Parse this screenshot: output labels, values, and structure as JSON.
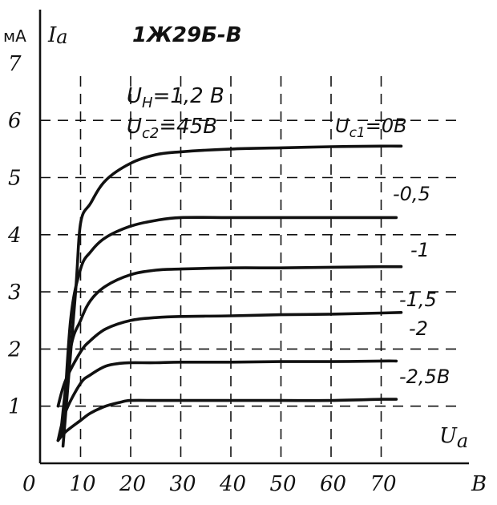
{
  "chart_data": {
    "type": "line",
    "title": "1Ж29Б-В",
    "parameters": [
      "U_H=1,2 B",
      "U_c2=45B"
    ],
    "parameter_lines": [
      {
        "main": "U",
        "sub": "H",
        "rest": "=1,2 B"
      },
      {
        "main": "U",
        "sub": "c2",
        "rest": "=45B"
      }
    ],
    "ylabel": {
      "main": "I",
      "sub": "a",
      "unit": "мА"
    },
    "xlabel": {
      "main": "U",
      "sub": "a",
      "unit": "B"
    },
    "xlim": [
      0,
      75
    ],
    "ylim": [
      0,
      7.5
    ],
    "x_ticks": [
      {
        "value": 0,
        "label": "0"
      },
      {
        "value": 10,
        "label": "10"
      },
      {
        "value": 20,
        "label": "20"
      },
      {
        "value": 30,
        "label": "30"
      },
      {
        "value": 40,
        "label": "40"
      },
      {
        "value": 50,
        "label": "50"
      },
      {
        "value": 60,
        "label": "60"
      },
      {
        "value": 70,
        "label": "70"
      }
    ],
    "y_ticks": [
      {
        "value": 1,
        "label": "1"
      },
      {
        "value": 2,
        "label": "2"
      },
      {
        "value": 3,
        "label": "3"
      },
      {
        "value": 4,
        "label": "4"
      },
      {
        "value": 5,
        "label": "5"
      },
      {
        "value": 6,
        "label": "6"
      },
      {
        "value": 7,
        "label": "7"
      }
    ],
    "grid": true,
    "series": [
      {
        "name": "U_c1=0B",
        "label": "Uc1=0B",
        "x": [
          6.5,
          9,
          10,
          12,
          15,
          20,
          25,
          30,
          40,
          50,
          60,
          70,
          74
        ],
        "y": [
          0.3,
          3.0,
          4.2,
          4.55,
          4.95,
          5.25,
          5.4,
          5.45,
          5.5,
          5.52,
          5.54,
          5.55,
          5.55
        ]
      },
      {
        "name": "-0,5",
        "label": "-0,5",
        "x": [
          6.5,
          8,
          10,
          12,
          15,
          20,
          25,
          30,
          40,
          50,
          60,
          70,
          73
        ],
        "y": [
          0.5,
          2.5,
          3.4,
          3.7,
          3.95,
          4.15,
          4.25,
          4.3,
          4.3,
          4.3,
          4.3,
          4.3,
          4.3
        ]
      },
      {
        "name": "-1",
        "label": "-1",
        "x": [
          6,
          8,
          10,
          12,
          15,
          20,
          25,
          30,
          40,
          50,
          60,
          70,
          74
        ],
        "y": [
          0.5,
          2.0,
          2.5,
          2.85,
          3.1,
          3.3,
          3.38,
          3.4,
          3.42,
          3.42,
          3.43,
          3.44,
          3.44
        ]
      },
      {
        "name": "-1,5",
        "label": "-1,5",
        "x": [
          5.5,
          7,
          10,
          12,
          15,
          20,
          25,
          30,
          40,
          50,
          60,
          70,
          74
        ],
        "y": [
          1.0,
          1.45,
          1.95,
          2.15,
          2.35,
          2.5,
          2.55,
          2.57,
          2.58,
          2.6,
          2.61,
          2.63,
          2.64
        ]
      },
      {
        "name": "-2",
        "label": "-2",
        "x": [
          5.5,
          7,
          10,
          12,
          15,
          18,
          20,
          25,
          30,
          40,
          50,
          60,
          70,
          73
        ],
        "y": [
          0.4,
          0.9,
          1.4,
          1.55,
          1.7,
          1.75,
          1.76,
          1.76,
          1.77,
          1.77,
          1.78,
          1.78,
          1.79,
          1.79
        ]
      },
      {
        "name": "-2,5B",
        "label": "-2,5B",
        "x": [
          5.5,
          7,
          10,
          12,
          15,
          18,
          20,
          25,
          30,
          40,
          50,
          60,
          70,
          73
        ],
        "y": [
          0.4,
          0.55,
          0.75,
          0.88,
          1.0,
          1.07,
          1.1,
          1.1,
          1.1,
          1.1,
          1.1,
          1.1,
          1.12,
          1.12
        ]
      }
    ]
  }
}
